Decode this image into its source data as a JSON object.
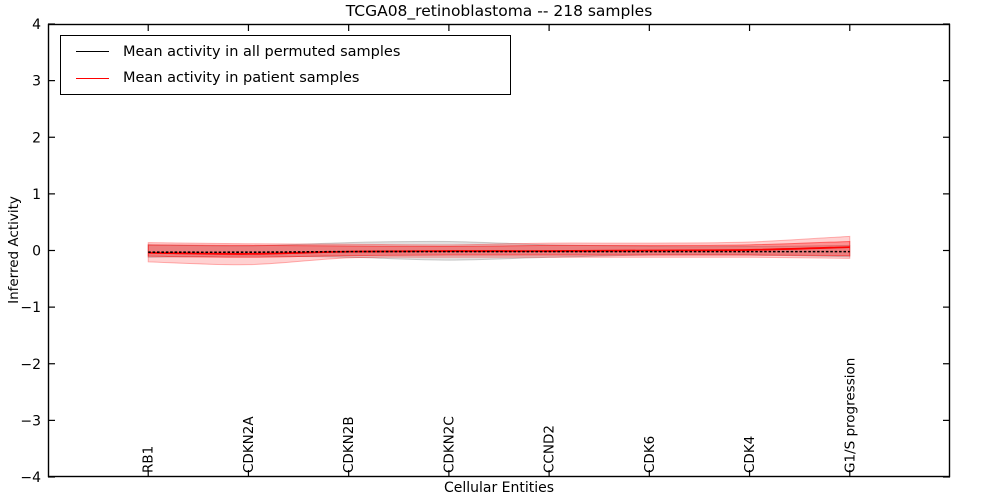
{
  "figure": {
    "title": "TCGA08_retinoblastoma -- 218 samples",
    "xlabel": "Cellular Entities",
    "ylabel": "Inferred Activity"
  },
  "chart_data": {
    "type": "line",
    "title": "TCGA08_retinoblastoma -- 218 samples",
    "xlabel": "Cellular Entities",
    "ylabel": "Inferred Activity",
    "categories": [
      "RB1",
      "CDKN2A",
      "CDKN2B",
      "CDKN2C",
      "CCND2",
      "CDK6",
      "CDK4",
      "G1/S progression"
    ],
    "ylim": [
      -4,
      4
    ],
    "yticks": [
      -4,
      -3,
      -2,
      -1,
      0,
      1,
      2,
      3,
      4
    ],
    "grid": false,
    "legend_position": "upper left",
    "background_color": "#ffffff",
    "axis_color": "#000000",
    "series": [
      {
        "name": "Mean activity in all permuted samples",
        "color": "#000000",
        "style": "dashed",
        "values": [
          -0.03,
          -0.03,
          -0.02,
          -0.02,
          -0.02,
          -0.02,
          -0.02,
          -0.02
        ],
        "bands": [
          {
            "upper": [
              0.1,
              0.08,
              0.14,
              0.16,
              0.1,
              0.07,
              0.07,
              0.09
            ],
            "lower": [
              -0.12,
              -0.1,
              -0.12,
              -0.17,
              -0.12,
              -0.08,
              -0.08,
              -0.11
            ],
            "color": "#999999",
            "opacity": 0.3
          }
        ]
      },
      {
        "name": "Mean activity in patient samples",
        "color": "#ff0000",
        "style": "solid",
        "values": [
          -0.04,
          -0.06,
          -0.02,
          -0.01,
          -0.01,
          0.0,
          0.01,
          0.06
        ],
        "bands": [
          {
            "upper": [
              0.14,
              0.12,
              0.11,
              0.1,
              0.13,
              0.13,
              0.15,
              0.25
            ],
            "lower": [
              -0.2,
              -0.25,
              -0.13,
              -0.12,
              -0.12,
              -0.12,
              -0.12,
              -0.14
            ],
            "color": "#ff0000",
            "opacity": 0.18
          },
          {
            "upper": [
              0.1,
              0.09,
              0.08,
              0.07,
              0.09,
              0.09,
              0.1,
              0.16
            ],
            "lower": [
              -0.1,
              -0.12,
              -0.09,
              -0.08,
              -0.08,
              -0.08,
              -0.08,
              -0.09
            ],
            "color": "#ff0000",
            "opacity": 0.3
          }
        ]
      }
    ]
  }
}
